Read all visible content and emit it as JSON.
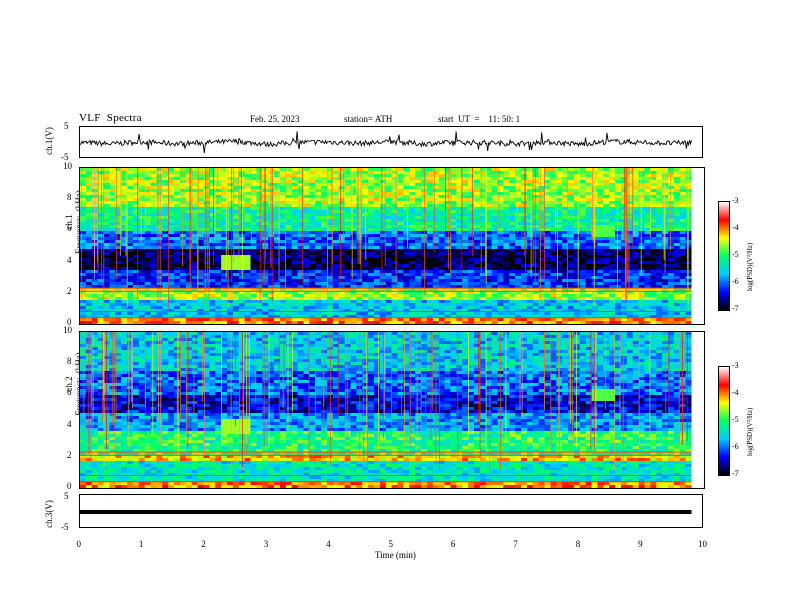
{
  "header": {
    "title": "VLF  Spectra",
    "date": "Feb. 25, 2023",
    "station": "station= ATH",
    "start": "start  UT  =    11: 50: 1"
  },
  "chart_data": [
    {
      "type": "line",
      "name": "ch1-voltage",
      "ylabel": "ch.1(V)",
      "ylim": [
        -5,
        5
      ],
      "yticks": [
        "5",
        "-5"
      ],
      "xlim": [
        0,
        10
      ],
      "x": [
        0,
        0.5,
        1,
        1.5,
        2,
        2.5,
        3,
        3.5,
        4,
        4.5,
        5,
        5.5,
        6,
        6.5,
        7,
        7.5,
        8,
        8.5,
        9,
        9.5,
        9.8
      ],
      "values": [
        0.2,
        -0.3,
        0.4,
        -0.2,
        0.1,
        0.5,
        -0.4,
        0.2,
        0.3,
        -0.1,
        0.4,
        -0.3,
        0.2,
        0.1,
        -0.2,
        0.3,
        -0.4,
        0.5,
        0.2,
        -0.1,
        0.3
      ]
    },
    {
      "type": "heatmap",
      "name": "ch1-spectrogram",
      "ylabel": "ch.1\nFrequency  (kHz)",
      "yticks": [
        "10",
        "8",
        "6",
        "4",
        "2",
        "0"
      ],
      "ylim": [
        0,
        10
      ],
      "xlim": [
        0,
        10
      ],
      "colorbar": {
        "label": "log(PSD)(V²/Hz)",
        "ticks": [
          "-3",
          "-4",
          "-5",
          "-6",
          "-7"
        ],
        "range": [
          -7,
          -3
        ],
        "colors": [
          "#000000",
          "#0000ff",
          "#00ccff",
          "#00ff66",
          "#ffff00",
          "#ff0000",
          "#ffffff"
        ]
      },
      "bands": [
        {
          "fmin": 0,
          "fmax": 0.4,
          "level": -4.0
        },
        {
          "fmin": 0.4,
          "fmax": 1.6,
          "level": -5.6
        },
        {
          "fmin": 1.6,
          "fmax": 2.4,
          "level": -4.6
        },
        {
          "fmin": 2.4,
          "fmax": 3.4,
          "level": -6.2
        },
        {
          "fmin": 3.4,
          "fmax": 4.8,
          "level": -6.8
        },
        {
          "fmin": 4.8,
          "fmax": 6.0,
          "level": -6.0
        },
        {
          "fmin": 6.0,
          "fmax": 7.5,
          "level": -5.2
        },
        {
          "fmin": 7.5,
          "fmax": 10,
          "level": -4.6
        }
      ]
    },
    {
      "type": "heatmap",
      "name": "ch2-spectrogram",
      "ylabel": "ch.2\nFrequency  (kHz)",
      "yticks": [
        "10",
        "8",
        "6",
        "4",
        "2",
        "0"
      ],
      "ylim": [
        0,
        10
      ],
      "xlim": [
        0,
        10
      ],
      "colorbar": {
        "label": "log(PSD)(V²/Hz)",
        "ticks": [
          "-3",
          "-4",
          "-5",
          "-6",
          "-7"
        ],
        "range": [
          -7,
          -3
        ],
        "colors": [
          "#000000",
          "#0000ff",
          "#00ccff",
          "#00ff66",
          "#ffff00",
          "#ff0000",
          "#ffffff"
        ]
      },
      "bands": [
        {
          "fmin": 0,
          "fmax": 0.4,
          "level": -4.0
        },
        {
          "fmin": 0.4,
          "fmax": 1.8,
          "level": -5.4
        },
        {
          "fmin": 1.8,
          "fmax": 2.2,
          "level": -4.2
        },
        {
          "fmin": 2.2,
          "fmax": 3.6,
          "level": -5.0
        },
        {
          "fmin": 3.6,
          "fmax": 4.8,
          "level": -5.8
        },
        {
          "fmin": 4.8,
          "fmax": 6.0,
          "level": -6.4
        },
        {
          "fmin": 6.0,
          "fmax": 7.5,
          "level": -6.0
        },
        {
          "fmin": 7.5,
          "fmax": 10,
          "level": -5.6
        }
      ]
    },
    {
      "type": "line",
      "name": "ch3-voltage",
      "ylabel": "ch.3(V)",
      "ylim": [
        -5,
        5
      ],
      "yticks": [
        "5",
        "-5"
      ],
      "xlim": [
        0,
        10
      ],
      "x": [
        0,
        9.8
      ],
      "values": [
        0,
        0
      ]
    }
  ],
  "xaxis": {
    "label": "Time  (min)",
    "ticks": [
      "0",
      "1",
      "2",
      "3",
      "4",
      "5",
      "6",
      "7",
      "8",
      "9",
      "10"
    ]
  }
}
